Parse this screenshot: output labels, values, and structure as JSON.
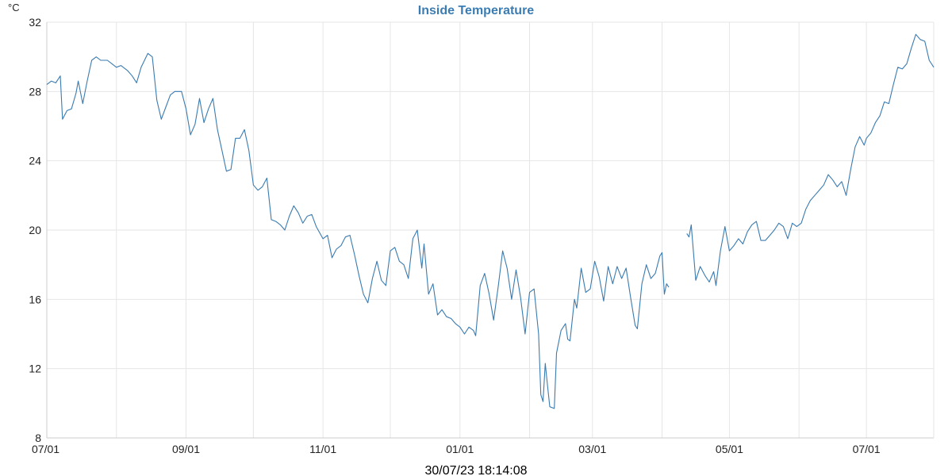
{
  "chart_data": {
    "type": "line",
    "title": "Inside Temperature",
    "title_color": "#3b7db3",
    "ylabel": "°C",
    "ylim": [
      8,
      32
    ],
    "yticks": [
      8,
      12,
      16,
      20,
      24,
      28,
      32
    ],
    "xlim": [
      "2022-07-01",
      "2023-07-31"
    ],
    "xticks": [
      {
        "date": "2022-07-01",
        "label": "07/01"
      },
      {
        "date": "2022-09-01",
        "label": "09/01"
      },
      {
        "date": "2022-11-01",
        "label": "11/01"
      },
      {
        "date": "2023-01-01",
        "label": "01/01"
      },
      {
        "date": "2023-03-01",
        "label": "03/01"
      },
      {
        "date": "2023-05-01",
        "label": "05/01"
      },
      {
        "date": "2023-07-01",
        "label": "07/01"
      }
    ],
    "minor_gridlines": [
      "2022-08-01",
      "2022-10-01",
      "2022-12-01",
      "2023-02-01",
      "2023-04-01",
      "2023-06-01"
    ],
    "grid": true,
    "legend": "none",
    "line_color": "#3a7bb0",
    "series": [
      {
        "values": [
          [
            "2022-07-01",
            28.4
          ],
          [
            "2022-07-03",
            28.6
          ],
          [
            "2022-07-05",
            28.5
          ],
          [
            "2022-07-07",
            28.9
          ],
          [
            "2022-07-08",
            26.4
          ],
          [
            "2022-07-10",
            26.9
          ],
          [
            "2022-07-12",
            27.0
          ],
          [
            "2022-07-14",
            27.9
          ],
          [
            "2022-07-15",
            28.6
          ],
          [
            "2022-07-17",
            27.3
          ],
          [
            "2022-07-19",
            28.6
          ],
          [
            "2022-07-21",
            29.8
          ],
          [
            "2022-07-23",
            30.0
          ],
          [
            "2022-07-25",
            29.8
          ],
          [
            "2022-07-28",
            29.8
          ],
          [
            "2022-07-30",
            29.6
          ],
          [
            "2022-08-01",
            29.4
          ],
          [
            "2022-08-03",
            29.5
          ],
          [
            "2022-08-06",
            29.2
          ],
          [
            "2022-08-08",
            28.9
          ],
          [
            "2022-08-10",
            28.5
          ],
          [
            "2022-08-12",
            29.4
          ],
          [
            "2022-08-15",
            30.2
          ],
          [
            "2022-08-17",
            30.0
          ],
          [
            "2022-08-19",
            27.5
          ],
          [
            "2022-08-21",
            26.4
          ],
          [
            "2022-08-23",
            27.1
          ],
          [
            "2022-08-25",
            27.8
          ],
          [
            "2022-08-27",
            28.0
          ],
          [
            "2022-08-30",
            28.0
          ],
          [
            "2022-09-01",
            27.0
          ],
          [
            "2022-09-03",
            25.5
          ],
          [
            "2022-09-05",
            26.1
          ],
          [
            "2022-09-07",
            27.6
          ],
          [
            "2022-09-09",
            26.2
          ],
          [
            "2022-09-11",
            27.0
          ],
          [
            "2022-09-13",
            27.6
          ],
          [
            "2022-09-15",
            25.8
          ],
          [
            "2022-09-17",
            24.6
          ],
          [
            "2022-09-19",
            23.4
          ],
          [
            "2022-09-21",
            23.5
          ],
          [
            "2022-09-23",
            25.3
          ],
          [
            "2022-09-25",
            25.3
          ],
          [
            "2022-09-27",
            25.8
          ],
          [
            "2022-09-29",
            24.6
          ],
          [
            "2022-10-01",
            22.6
          ],
          [
            "2022-10-03",
            22.3
          ],
          [
            "2022-10-05",
            22.5
          ],
          [
            "2022-10-07",
            23.0
          ],
          [
            "2022-10-09",
            20.6
          ],
          [
            "2022-10-11",
            20.5
          ],
          [
            "2022-10-13",
            20.3
          ],
          [
            "2022-10-15",
            20.0
          ],
          [
            "2022-10-17",
            20.8
          ],
          [
            "2022-10-19",
            21.4
          ],
          [
            "2022-10-21",
            21.0
          ],
          [
            "2022-10-23",
            20.4
          ],
          [
            "2022-10-25",
            20.8
          ],
          [
            "2022-10-27",
            20.9
          ],
          [
            "2022-10-29",
            20.2
          ],
          [
            "2022-11-01",
            19.5
          ],
          [
            "2022-11-03",
            19.7
          ],
          [
            "2022-11-05",
            18.4
          ],
          [
            "2022-11-07",
            18.9
          ],
          [
            "2022-11-09",
            19.1
          ],
          [
            "2022-11-11",
            19.6
          ],
          [
            "2022-11-13",
            19.7
          ],
          [
            "2022-11-15",
            18.6
          ],
          [
            "2022-11-17",
            17.4
          ],
          [
            "2022-11-19",
            16.3
          ],
          [
            "2022-11-21",
            15.8
          ],
          [
            "2022-11-23",
            17.2
          ],
          [
            "2022-11-25",
            18.2
          ],
          [
            "2022-11-27",
            17.1
          ],
          [
            "2022-11-29",
            16.8
          ],
          [
            "2022-12-01",
            18.8
          ],
          [
            "2022-12-03",
            19.0
          ],
          [
            "2022-12-05",
            18.2
          ],
          [
            "2022-12-07",
            18.0
          ],
          [
            "2022-12-09",
            17.2
          ],
          [
            "2022-12-11",
            19.5
          ],
          [
            "2022-12-13",
            20.0
          ],
          [
            "2022-12-15",
            17.8
          ],
          [
            "2022-12-16",
            19.2
          ],
          [
            "2022-12-18",
            16.3
          ],
          [
            "2022-12-20",
            16.9
          ],
          [
            "2022-12-22",
            15.1
          ],
          [
            "2022-12-24",
            15.4
          ],
          [
            "2022-12-26",
            15.0
          ],
          [
            "2022-12-28",
            14.9
          ],
          [
            "2022-12-30",
            14.6
          ],
          [
            "2023-01-01",
            14.4
          ],
          [
            "2023-01-03",
            14.0
          ],
          [
            "2023-01-05",
            14.4
          ],
          [
            "2023-01-07",
            14.2
          ],
          [
            "2023-01-08",
            13.9
          ],
          [
            "2023-01-10",
            16.8
          ],
          [
            "2023-01-12",
            17.5
          ],
          [
            "2023-01-14",
            16.3
          ],
          [
            "2023-01-16",
            14.8
          ],
          [
            "2023-01-18",
            16.7
          ],
          [
            "2023-01-20",
            18.8
          ],
          [
            "2023-01-22",
            17.8
          ],
          [
            "2023-01-24",
            16.0
          ],
          [
            "2023-01-26",
            17.7
          ],
          [
            "2023-01-28",
            16.1
          ],
          [
            "2023-01-30",
            14.0
          ],
          [
            "2023-02-01",
            16.4
          ],
          [
            "2023-02-03",
            16.6
          ],
          [
            "2023-02-05",
            14.0
          ],
          [
            "2023-02-06",
            10.5
          ],
          [
            "2023-02-07",
            10.1
          ],
          [
            "2023-02-08",
            12.3
          ],
          [
            "2023-02-09",
            11.0
          ],
          [
            "2023-02-10",
            9.8
          ],
          [
            "2023-02-12",
            9.7
          ],
          [
            "2023-02-13",
            12.9
          ],
          [
            "2023-02-15",
            14.2
          ],
          [
            "2023-02-17",
            14.6
          ],
          [
            "2023-02-18",
            13.7
          ],
          [
            "2023-02-19",
            13.6
          ],
          [
            "2023-02-21",
            16.0
          ],
          [
            "2023-02-22",
            15.5
          ],
          [
            "2023-02-24",
            17.8
          ],
          [
            "2023-02-26",
            16.4
          ],
          [
            "2023-02-28",
            16.6
          ],
          [
            "2023-03-02",
            18.2
          ],
          [
            "2023-03-04",
            17.3
          ],
          [
            "2023-03-06",
            15.9
          ],
          [
            "2023-03-08",
            17.9
          ],
          [
            "2023-03-10",
            16.9
          ],
          [
            "2023-03-12",
            17.9
          ],
          [
            "2023-03-14",
            17.2
          ],
          [
            "2023-03-16",
            17.8
          ],
          [
            "2023-03-18",
            16.1
          ],
          [
            "2023-03-20",
            14.5
          ],
          [
            "2023-03-21",
            14.3
          ],
          [
            "2023-03-23",
            16.9
          ],
          [
            "2023-03-25",
            18.0
          ],
          [
            "2023-03-27",
            17.2
          ],
          [
            "2023-03-29",
            17.5
          ],
          [
            "2023-03-31",
            18.5
          ],
          [
            "2023-04-01",
            18.7
          ],
          [
            "2023-04-02",
            16.3
          ],
          [
            "2023-04-03",
            16.9
          ],
          [
            "2023-04-04",
            16.7
          ],
          null,
          [
            "2023-04-12",
            19.8
          ],
          [
            "2023-04-13",
            19.6
          ],
          [
            "2023-04-14",
            20.3
          ],
          [
            "2023-04-16",
            17.1
          ],
          [
            "2023-04-18",
            17.9
          ],
          [
            "2023-04-20",
            17.4
          ],
          [
            "2023-04-22",
            17.0
          ],
          [
            "2023-04-24",
            17.6
          ],
          [
            "2023-04-25",
            16.8
          ],
          [
            "2023-04-27",
            18.8
          ],
          [
            "2023-04-29",
            20.2
          ],
          [
            "2023-05-01",
            18.8
          ],
          [
            "2023-05-03",
            19.1
          ],
          [
            "2023-05-05",
            19.5
          ],
          [
            "2023-05-07",
            19.2
          ],
          [
            "2023-05-09",
            19.9
          ],
          [
            "2023-05-11",
            20.3
          ],
          [
            "2023-05-13",
            20.5
          ],
          [
            "2023-05-15",
            19.4
          ],
          [
            "2023-05-17",
            19.4
          ],
          [
            "2023-05-19",
            19.7
          ],
          [
            "2023-05-21",
            20.0
          ],
          [
            "2023-05-23",
            20.4
          ],
          [
            "2023-05-25",
            20.2
          ],
          [
            "2023-05-27",
            19.5
          ],
          [
            "2023-05-29",
            20.4
          ],
          [
            "2023-05-31",
            20.2
          ],
          [
            "2023-06-02",
            20.4
          ],
          [
            "2023-06-04",
            21.2
          ],
          [
            "2023-06-06",
            21.7
          ],
          [
            "2023-06-08",
            22.0
          ],
          [
            "2023-06-10",
            22.3
          ],
          [
            "2023-06-12",
            22.6
          ],
          [
            "2023-06-14",
            23.2
          ],
          [
            "2023-06-16",
            22.9
          ],
          [
            "2023-06-18",
            22.5
          ],
          [
            "2023-06-20",
            22.8
          ],
          [
            "2023-06-22",
            22.0
          ],
          [
            "2023-06-24",
            23.5
          ],
          [
            "2023-06-26",
            24.8
          ],
          [
            "2023-06-28",
            25.4
          ],
          [
            "2023-06-30",
            24.9
          ],
          [
            "2023-07-01",
            25.3
          ],
          [
            "2023-07-03",
            25.6
          ],
          [
            "2023-07-05",
            26.2
          ],
          [
            "2023-07-07",
            26.6
          ],
          [
            "2023-07-09",
            27.4
          ],
          [
            "2023-07-11",
            27.3
          ],
          [
            "2023-07-13",
            28.4
          ],
          [
            "2023-07-15",
            29.4
          ],
          [
            "2023-07-17",
            29.3
          ],
          [
            "2023-07-19",
            29.6
          ],
          [
            "2023-07-21",
            30.5
          ],
          [
            "2023-07-23",
            31.3
          ],
          [
            "2023-07-25",
            31.0
          ],
          [
            "2023-07-27",
            30.9
          ],
          [
            "2023-07-29",
            29.8
          ],
          [
            "2023-07-31",
            29.4
          ]
        ]
      }
    ]
  },
  "footer": {
    "timestamp": "30/07/23 18:14:08"
  }
}
